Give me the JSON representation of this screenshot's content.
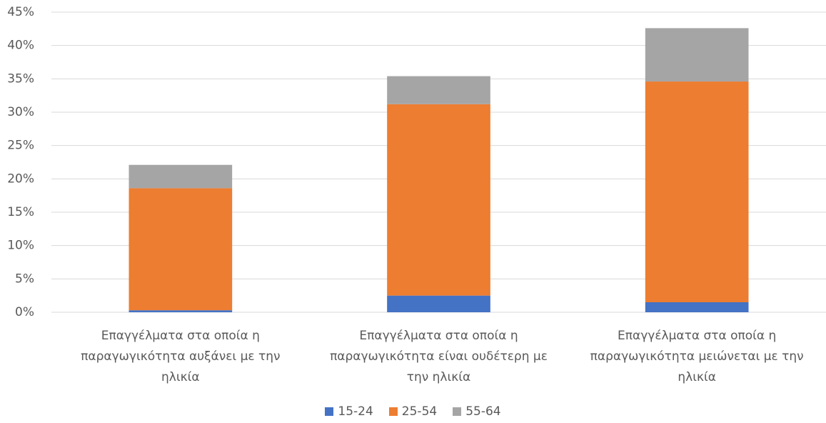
{
  "chart_data": {
    "type": "stacked-bar",
    "categories": [
      "Επαγγέλματα στα οποία η παραγωγικότητα αυξάνει με την ηλικία",
      "Επαγγέλματα στα οποία η παραγωγικότητα είναι ουδέτερη με την ηλικία",
      "Επαγγέλματα στα οποία η παραγωγικότητα μειώνεται με την ηλικία"
    ],
    "series": [
      {
        "name": "15-24",
        "color": "#4472c4",
        "values": [
          0.3,
          2.5,
          1.5
        ]
      },
      {
        "name": "25-54",
        "color": "#ed7d31",
        "values": [
          18.3,
          28.7,
          33.1
        ]
      },
      {
        "name": "55-64",
        "color": "#a5a5a5",
        "values": [
          3.5,
          4.2,
          8.0
        ]
      }
    ],
    "ylim": [
      0,
      45
    ],
    "yticks": [
      {
        "value": 0,
        "label": "0%"
      },
      {
        "value": 5,
        "label": "5%"
      },
      {
        "value": 10,
        "label": "10%"
      },
      {
        "value": 15,
        "label": "15%"
      },
      {
        "value": 20,
        "label": "20%"
      },
      {
        "value": 25,
        "label": "25%"
      },
      {
        "value": 30,
        "label": "30%"
      },
      {
        "value": 35,
        "label": "35%"
      },
      {
        "value": 40,
        "label": "40%"
      },
      {
        "value": 45,
        "label": "45%"
      }
    ],
    "grid": true,
    "legend": "bottom"
  }
}
